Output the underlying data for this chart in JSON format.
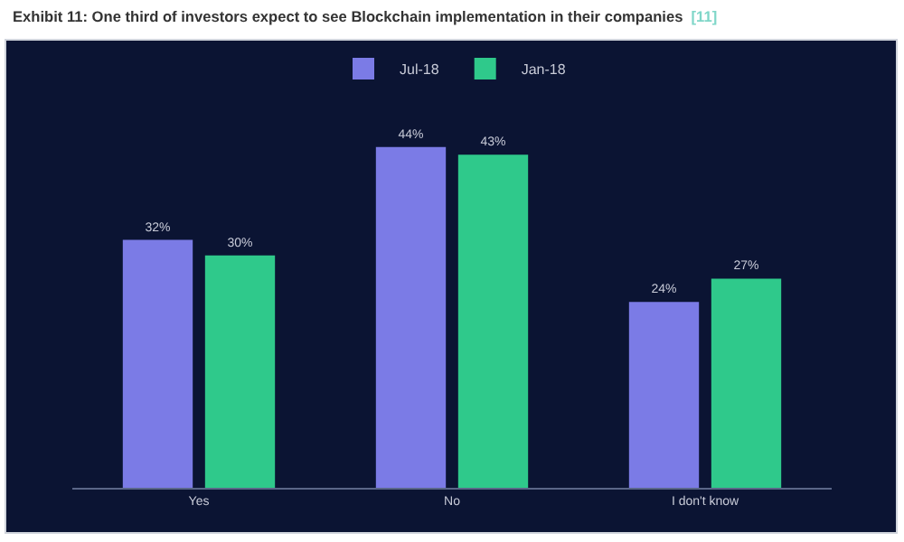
{
  "chart_data": {
    "type": "bar",
    "title": "Exhibit 11: One third of investors expect to see Blockchain implementation in their companies",
    "annotations": [
      "[11]"
    ],
    "categories": [
      "Yes",
      "No",
      "I don't know"
    ],
    "series": [
      {
        "name": "Jul-18",
        "color": "#7b7be6",
        "values": [
          32,
          44,
          24
        ],
        "value_labels": [
          "32%",
          "44%",
          "24%"
        ]
      },
      {
        "name": "Jan-18",
        "color": "#2fc98b",
        "values": [
          30,
          43,
          27
        ],
        "value_labels": [
          "30%",
          "43%",
          "27%"
        ]
      }
    ],
    "legend": "top",
    "grid": false
  }
}
